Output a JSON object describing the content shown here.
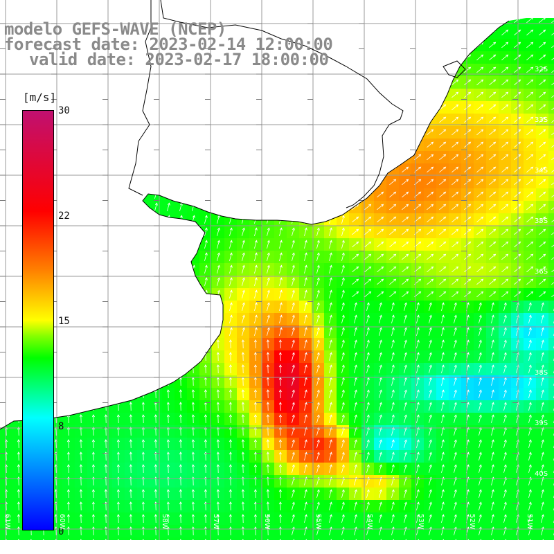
{
  "title": {
    "line1": "modelo GEFS-WAVE (NCEP)",
    "line2": "forecast date: 2023-02-14 12:00:00",
    "line3": "valid date: 2023-02-17 18:00:00"
  },
  "colorbar": {
    "unit": "[m/s]",
    "ticks": [
      "30",
      "22",
      "15",
      "8",
      "0"
    ],
    "min": 0,
    "max": 30
  },
  "grid": {
    "lat_labels": [
      "32S",
      "33S",
      "34S",
      "35S",
      "36S",
      "38S",
      "39S",
      "40S"
    ],
    "lon_labels": [
      "61W",
      "60W",
      "58W",
      "57W",
      "56W",
      "55W",
      "54W",
      "53W",
      "52W",
      "51W"
    ]
  },
  "colors": {
    "land": "#ffffff",
    "grid_line": "#9a9a9a",
    "coast": "#000000",
    "title_text": "#8a8a8a",
    "arrows": "#ffffff"
  }
}
